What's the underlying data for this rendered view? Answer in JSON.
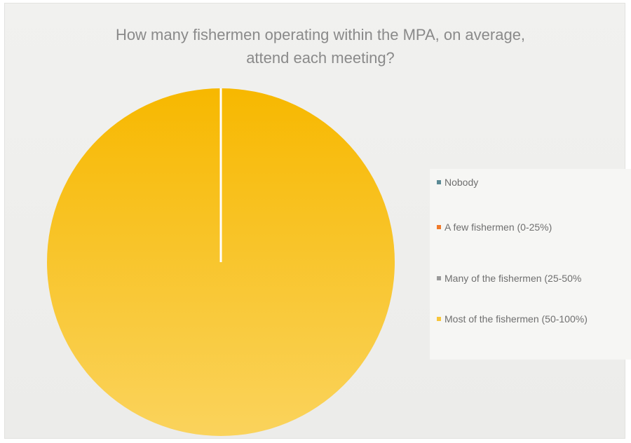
{
  "chart_data": {
    "type": "pie",
    "title": "How many fishermen operating within the MPA, on average, attend each meeting?",
    "categories": [
      "Nobody",
      "A few fishermen (0-25%)",
      "Many of the fishermen (25-50%",
      "Most of the fishermen (50-100%)"
    ],
    "values": [
      0,
      0,
      0,
      100
    ],
    "colors": [
      "#5b8a95",
      "#f07a2a",
      "#9a9a9a",
      "#f7c53b"
    ],
    "legend_position": "right"
  }
}
